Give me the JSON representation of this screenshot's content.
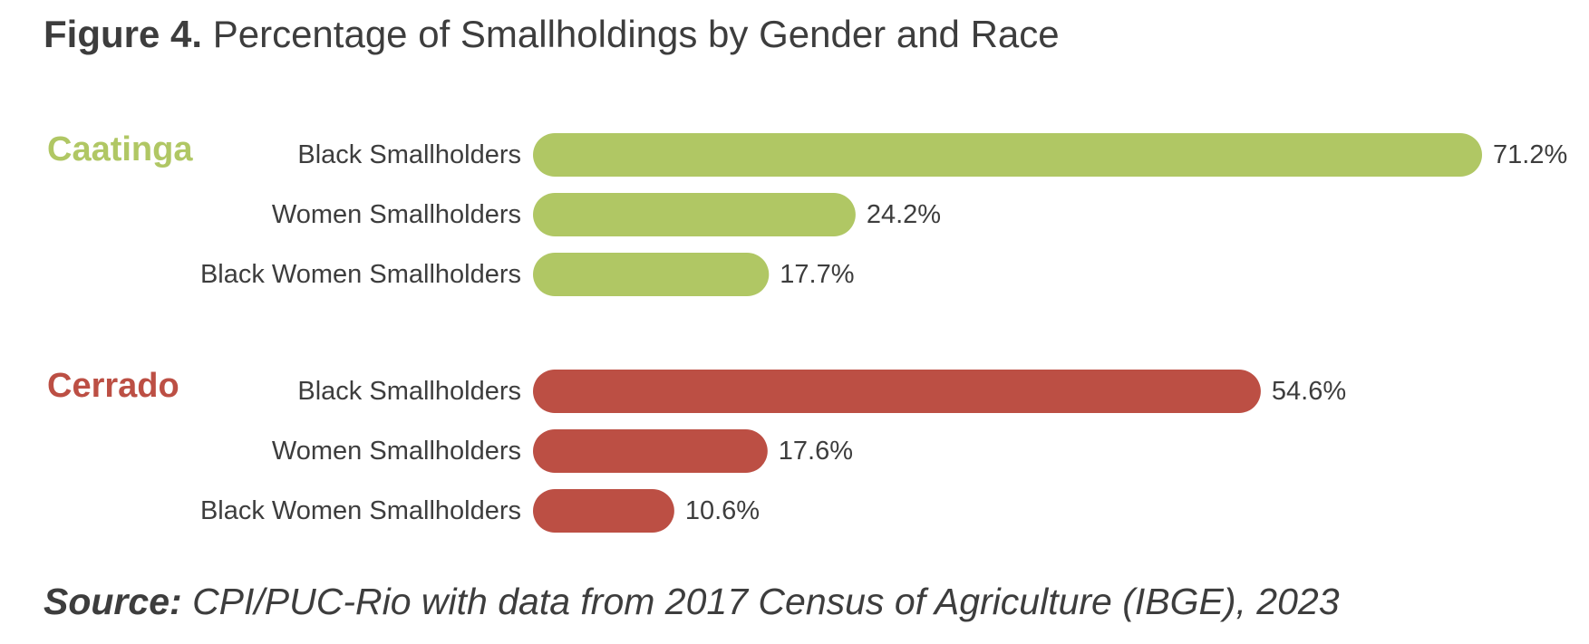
{
  "title": {
    "label": "Figure 4.",
    "text": "Percentage of Smallholdings by Gender and Race"
  },
  "source": {
    "label": "Source:",
    "text": "CPI/PUC-Rio with data from 2017 Census of Agriculture (IBGE), 2023"
  },
  "colors": {
    "caatinga": "#b0c764",
    "cerrado": "#bc4f44",
    "text": "#3d3d3d"
  },
  "chart_data": {
    "type": "bar",
    "orientation": "horizontal",
    "categories": [
      "Black Smallholders",
      "Women Smallholders",
      "Black Women Smallholders"
    ],
    "groups": [
      {
        "name": "Caatinga",
        "color": "#b0c764",
        "values": [
          71.2,
          24.2,
          17.7
        ],
        "value_labels": [
          "71.2%",
          "24.2%",
          "17.7%"
        ]
      },
      {
        "name": "Cerrado",
        "color": "#bc4f44",
        "values": [
          54.6,
          17.6,
          10.6
        ],
        "value_labels": [
          "54.6%",
          "17.6%",
          "10.6%"
        ]
      }
    ],
    "unit": "%",
    "xlim": [
      0,
      71.2
    ],
    "grid": false,
    "axes_visible": false
  }
}
